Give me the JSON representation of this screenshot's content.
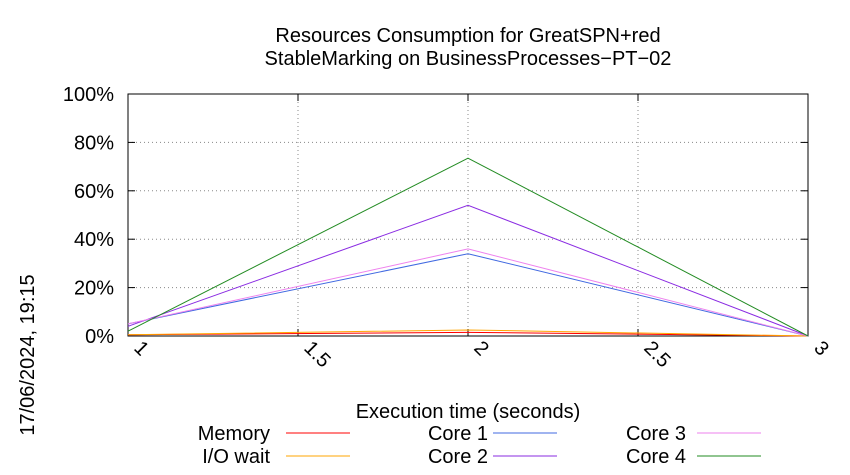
{
  "chart_data": {
    "type": "line",
    "title_line1": "Resources Consumption for GreatSPN+red",
    "title_line2": "StableMarking on BusinessProcesses−PT−02",
    "xlabel": "Execution time (seconds)",
    "ylabel": "",
    "timestamp": "17/06/2024, 19:15",
    "xlim": [
      1,
      3
    ],
    "ylim": [
      0,
      100
    ],
    "x_ticks": [
      1,
      1.5,
      2,
      2.5,
      3
    ],
    "x_tick_labels": [
      "1",
      "1.5",
      "2",
      "2.5",
      "3"
    ],
    "y_ticks": [
      0,
      20,
      40,
      60,
      80,
      100
    ],
    "y_tick_labels": [
      "0%",
      "20%",
      "40%",
      "60%",
      "80%",
      "100%"
    ],
    "grid": true,
    "legend_position": "bottom",
    "x": [
      1,
      2,
      3
    ],
    "series": [
      {
        "name": "Memory",
        "color": "#ff0000",
        "values": [
          0.5,
          1.5,
          0
        ]
      },
      {
        "name": "I/O wait",
        "color": "#ffa500",
        "values": [
          0.5,
          2.5,
          0
        ]
      },
      {
        "name": "Core 1",
        "color": "#4169e1",
        "values": [
          5,
          34,
          0
        ]
      },
      {
        "name": "Core 2",
        "color": "#8a2be2",
        "values": [
          4,
          54,
          0
        ]
      },
      {
        "name": "Core 3",
        "color": "#ee82ee",
        "values": [
          5,
          36,
          0
        ]
      },
      {
        "name": "Core 4",
        "color": "#228b22",
        "values": [
          2,
          73.5,
          0
        ]
      }
    ]
  }
}
